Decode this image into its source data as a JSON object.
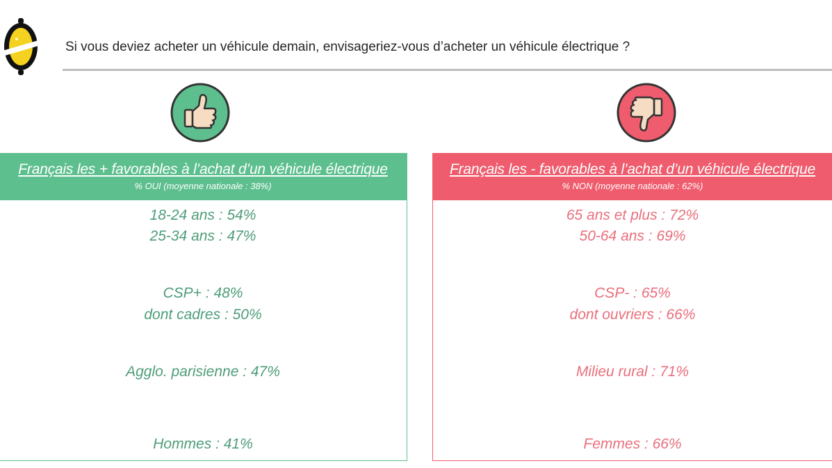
{
  "header": {
    "question": "Si vous deviez acheter un véhicule demain, envisageriez-vous d’acheter un véhicule électrique ?"
  },
  "colors": {
    "favorable": "#5dbf8e",
    "unfavorable": "#ef5c6d",
    "logo_yellow": "#f4d21f"
  },
  "icons": {
    "logo": "lemon-logo-icon",
    "favorable": "thumbs-up-icon",
    "unfavorable": "thumbs-down-icon"
  },
  "favorable": {
    "title": "Français les + favorables à l’achat d’un véhicule électrique",
    "subtitle": "% OUI (moyenne nationale : 38%)",
    "items": [
      "18-24 ans : 54%",
      "25-34 ans : 47%",
      "CSP+ : 48%",
      "dont cadres : 50%",
      "Agglo. parisienne : 47%",
      "Hommes : 41%"
    ]
  },
  "unfavorable": {
    "title": "Français les - favorables à l’achat d’un véhicule électrique",
    "subtitle": "% NON (moyenne nationale : 62%)",
    "items": [
      "65 ans et plus : 72%",
      "50-64 ans : 69%",
      "CSP- : 65%",
      "dont ouvriers : 66%",
      "Milieu rural : 71%",
      "Femmes : 66%"
    ]
  }
}
